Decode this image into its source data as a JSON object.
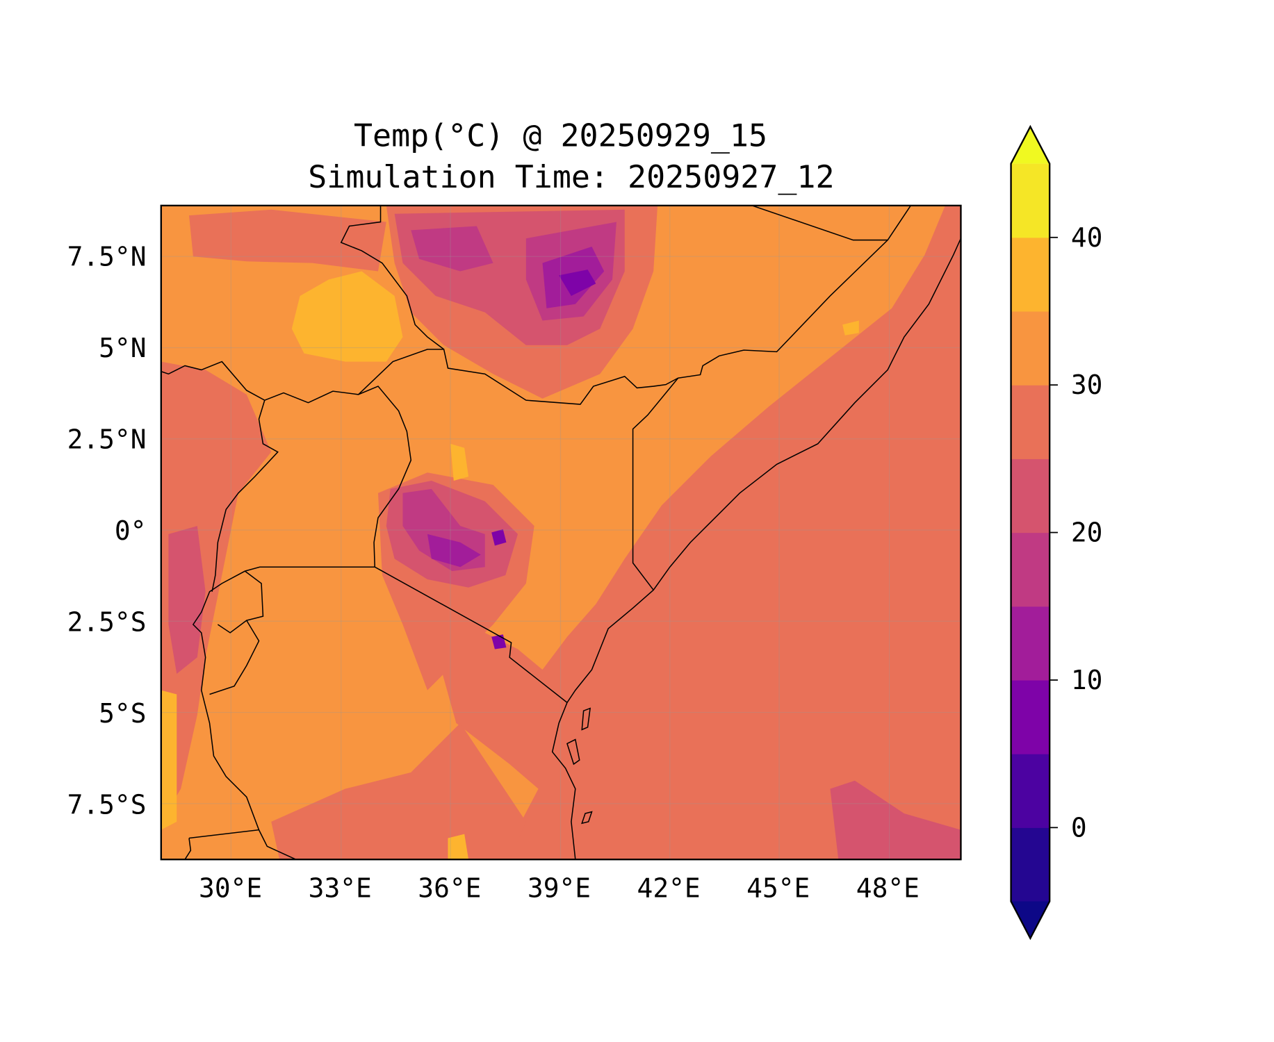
{
  "chart_data": {
    "type": "heatmap",
    "subtype": "filled-contour-map",
    "title": [
      "Temp(°C) @ 20250929_15",
      "Simulation Time: 20250927_12"
    ],
    "xlabel": "",
    "ylabel": "",
    "xlim": [
      28.1,
      50.0
    ],
    "ylim": [
      -9.0,
      8.9
    ],
    "xticks": [
      30,
      33,
      36,
      39,
      42,
      45,
      48
    ],
    "xtick_labels": [
      "30°E",
      "33°E",
      "36°E",
      "39°E",
      "42°E",
      "45°E",
      "48°E"
    ],
    "yticks": [
      7.5,
      5,
      2.5,
      0,
      -2.5,
      -5,
      -7.5
    ],
    "ytick_labels": [
      "7.5°N",
      "5°N",
      "2.5°N",
      "0°",
      "2.5°S",
      "5°S",
      "7.5°S"
    ],
    "grid": true,
    "colorbar": {
      "placement": "right",
      "extend": "both",
      "levels": [
        -5,
        0,
        5,
        10,
        15,
        20,
        25,
        30,
        35,
        40,
        45
      ],
      "colors": [
        "#240691",
        "#4c02a1",
        "#7e03a8",
        "#a21d9a",
        "#c03a83",
        "#d5546e",
        "#e97158",
        "#f89540",
        "#fdb42f",
        "#f5e626"
      ],
      "under_color": "#0d0887",
      "over_color": "#f0f921",
      "ticks": [
        0,
        10,
        20,
        30,
        40
      ],
      "tick_labels": [
        "0",
        "10",
        "20",
        "30",
        "40"
      ]
    },
    "value_summary": {
      "ocean_range_c": [
        25,
        30
      ],
      "lowland_range_c": [
        30,
        35
      ],
      "hottest_areas_c": [
        35,
        40
      ],
      "coldest_highlands_c": [
        5,
        10
      ]
    }
  }
}
